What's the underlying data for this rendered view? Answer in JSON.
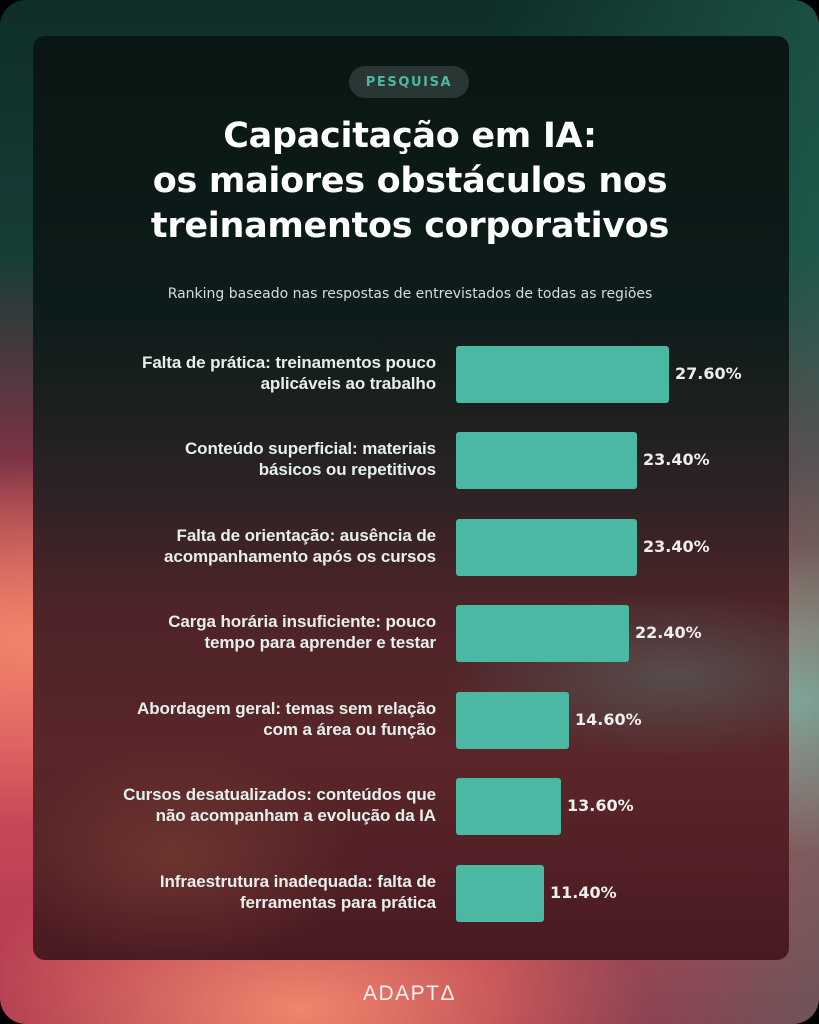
{
  "header": {
    "badge": "PESQUISA",
    "title_lines": [
      "Capacitação em IA:",
      "os maiores obstáculos nos",
      "treinamentos corporativos"
    ],
    "subtitle": "Ranking baseado nas respostas de entrevistados de todas as regiões"
  },
  "colors": {
    "bar": "#4ab8a2",
    "badge_text": "#4bb9a2",
    "card_top": "#0a1614",
    "card_bottom": "#4a1a22"
  },
  "rows": [
    {
      "label_1": "Falta de prática: treinamentos pouco",
      "label_2": "aplicáveis ao trabalho",
      "value_label": "27.60%",
      "value": 27.6
    },
    {
      "label_1": "Conteúdo superficial: materiais",
      "label_2": "básicos ou repetitivos",
      "value_label": "23.40%",
      "value": 23.4
    },
    {
      "label_1": "Falta de orientação: ausência de",
      "label_2": "acompanhamento após os cursos",
      "value_label": "23.40%",
      "value": 23.4
    },
    {
      "label_1": "Carga horária insuficiente: pouco",
      "label_2": "tempo para aprender e testar",
      "value_label": "22.40%",
      "value": 22.4
    },
    {
      "label_1": "Abordagem geral: temas sem relação",
      "label_2": "com a área ou função",
      "value_label": "14.60%",
      "value": 14.6
    },
    {
      "label_1": "Cursos desatualizados: conteúdos que",
      "label_2": "não acompanham a evolução da IA",
      "value_label": "13.60%",
      "value": 13.6
    },
    {
      "label_1": "Infraestrutura inadequada: falta de",
      "label_2": "ferramentas para prática",
      "value_label": "11.40%",
      "value": 11.4
    }
  ],
  "footer": {
    "logo": "ADAPTΔ"
  },
  "chart_data": {
    "type": "bar",
    "orientation": "horizontal",
    "title": "Capacitação em IA: os maiores obstáculos nos treinamentos corporativos",
    "subtitle": "Ranking baseado nas respostas de entrevistados de todas as regiões",
    "categories": [
      "Falta de prática: treinamentos pouco aplicáveis ao trabalho",
      "Conteúdo superficial: materiais básicos ou repetitivos",
      "Falta de orientação: ausência de acompanhamento após os cursos",
      "Carga horária insuficiente: pouco tempo para aprender e testar",
      "Abordagem geral: temas sem relação com a área ou função",
      "Cursos desatualizados: conteúdos que não acompanham a evolução da IA",
      "Infraestrutura inadequada: falta de ferramentas para prática"
    ],
    "values": [
      27.6,
      23.4,
      23.4,
      22.4,
      14.6,
      13.6,
      11.4
    ],
    "value_format": "percent",
    "xlabel": "",
    "ylabel": "",
    "grid": false,
    "legend": "none",
    "bar_color": "#4ab8a2"
  }
}
